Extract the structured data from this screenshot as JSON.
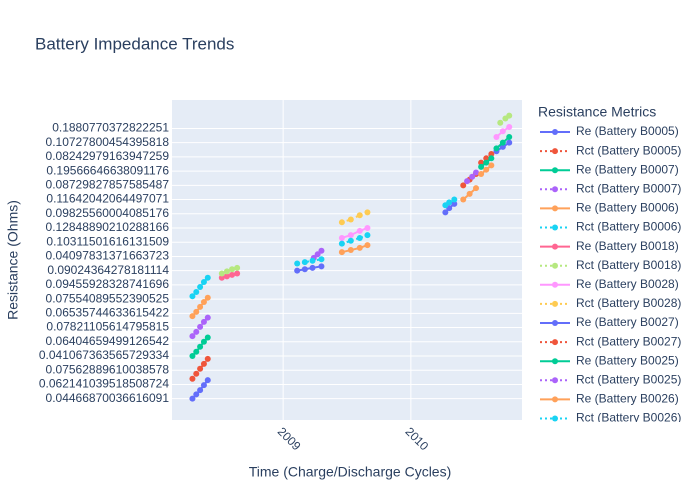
{
  "chart_data": {
    "type": "scatter",
    "title": "Battery Impedance Trends",
    "x_label": "Time (Charge/Discharge Cycles)",
    "y_label": "Resistance (Ohms)",
    "legend_title": "Resistance Metrics",
    "legend_position": "right",
    "grid": true,
    "xlim": [
      2008.13,
      2010.87
    ],
    "xticks": [
      2009,
      2010
    ],
    "ylim": [
      -1.5,
      21
    ],
    "yticks": [
      {
        "value": 0,
        "label": "0.04466870036616091"
      },
      {
        "value": 1,
        "label": "0.062141039518508724"
      },
      {
        "value": 2,
        "label": "0.07562889610038578"
      },
      {
        "value": 3,
        "label": "0.041067363565729334"
      },
      {
        "value": 4,
        "label": "0.06404659499126542"
      },
      {
        "value": 5,
        "label": "0.07821105614795815"
      },
      {
        "value": 6,
        "label": "0.06535744633615422"
      },
      {
        "value": 7,
        "label": "0.07554089552390525"
      },
      {
        "value": 8,
        "label": "0.09455928328741696"
      },
      {
        "value": 9,
        "label": "0.09024364278181114"
      },
      {
        "value": 10,
        "label": "0.04097831371663723"
      },
      {
        "value": 11,
        "label": "0.10311501616131509"
      },
      {
        "value": 12,
        "label": "0.12848890210288166"
      },
      {
        "value": 13,
        "label": "0.09825560004085176"
      },
      {
        "value": 14,
        "label": "0.11642042064497071"
      },
      {
        "value": 15,
        "label": "0.08729827857585487"
      },
      {
        "value": 16,
        "label": "0.19566646638091176"
      },
      {
        "value": 17,
        "label": "0.08242979163947259"
      },
      {
        "value": 18,
        "label": "0.10727800454395818"
      },
      {
        "value": 19,
        "label": "0.1880770372822251"
      }
    ],
    "series": [
      {
        "name": "Re (Battery B0005)",
        "color": "#636efa",
        "dash": "solid",
        "x": [
          2008.29,
          2008.32,
          2008.35,
          2008.38,
          2008.41
        ],
        "values": [
          0,
          0.3,
          0.6,
          0.95,
          1.3
        ]
      },
      {
        "name": "Rct (Battery B0005)",
        "color": "#ef553b",
        "dash": "dot",
        "x": [
          2008.29,
          2008.32,
          2008.35,
          2008.38,
          2008.41
        ],
        "values": [
          1.4,
          1.75,
          2.1,
          2.45,
          2.8
        ]
      },
      {
        "name": "Re (Battery B0007)",
        "color": "#00cc96",
        "dash": "solid",
        "x": [
          2008.29,
          2008.32,
          2008.35,
          2008.38,
          2008.41
        ],
        "values": [
          3.0,
          3.3,
          3.65,
          4.0,
          4.3
        ]
      },
      {
        "name": "Rct (Battery B0007)",
        "color": "#ab63fa",
        "dash": "dot",
        "x": [
          2008.29,
          2008.32,
          2008.35,
          2008.38,
          2008.41
        ],
        "values": [
          4.4,
          4.7,
          5.05,
          5.4,
          5.7
        ]
      },
      {
        "name": "Re (Battery B0006)",
        "color": "#ffa15a",
        "dash": "solid",
        "x": [
          2008.29,
          2008.32,
          2008.35,
          2008.38,
          2008.41
        ],
        "values": [
          5.8,
          6.1,
          6.45,
          6.8,
          7.1
        ]
      },
      {
        "name": "Rct (Battery B0006)",
        "color": "#19d3f3",
        "dash": "dot",
        "x": [
          2008.29,
          2008.32,
          2008.35,
          2008.38,
          2008.41
        ],
        "values": [
          7.2,
          7.5,
          7.85,
          8.2,
          8.5
        ]
      },
      {
        "name": "Re (Battery B0018)",
        "color": "#ff6692",
        "dash": "solid",
        "x": [
          2008.52,
          2008.56,
          2008.6,
          2008.64
        ],
        "values": [
          8.5,
          8.6,
          8.7,
          8.8
        ]
      },
      {
        "name": "Rct (Battery B0018)",
        "color": "#b6e880",
        "dash": "dot",
        "x": [
          2008.52,
          2008.56,
          2008.6,
          2008.64,
          null,
          2010.7,
          2010.74,
          2010.77
        ],
        "values": [
          8.8,
          8.95,
          9.1,
          9.2,
          null,
          19.4,
          19.7,
          19.9
        ]
      },
      {
        "name": "Re (Battery B0028)",
        "color": "#ff97ff",
        "dash": "solid",
        "x": [
          2009.46,
          2009.53,
          2009.6,
          2009.66,
          null,
          2010.67,
          2010.72,
          2010.77
        ],
        "values": [
          11.3,
          11.5,
          11.8,
          12.0,
          null,
          18.4,
          18.8,
          19.1
        ]
      },
      {
        "name": "Rct (Battery B0028)",
        "color": "#fecb52",
        "dash": "dot",
        "x": [
          2009.46,
          2009.53,
          2009.6,
          2009.66
        ],
        "values": [
          12.4,
          12.6,
          12.9,
          13.1
        ]
      },
      {
        "name": "Re (Battery B0027)",
        "color": "#636efa",
        "dash": "solid",
        "x": [
          2009.11,
          2009.17,
          2009.23,
          2009.3,
          null,
          2010.27,
          2010.3,
          2010.34,
          null,
          2010.67,
          2010.72,
          2010.77
        ],
        "values": [
          9.0,
          9.1,
          9.2,
          9.3,
          null,
          13.1,
          13.4,
          13.7,
          null,
          17.4,
          17.7,
          18.0
        ]
      },
      {
        "name": "Rct (Battery B0027)",
        "color": "#ef553b",
        "dash": "dot",
        "x": [
          2010.41,
          2010.46,
          2010.51,
          null,
          2010.55,
          2010.59,
          2010.63
        ],
        "values": [
          15.0,
          15.4,
          15.8,
          null,
          16.6,
          16.9,
          17.2
        ]
      },
      {
        "name": "Re (Battery B0025)",
        "color": "#00cc96",
        "dash": "solid",
        "x": [
          2010.55,
          2010.59,
          2010.63,
          null,
          2010.67,
          2010.72,
          2010.77
        ],
        "values": [
          16.3,
          16.6,
          16.9,
          null,
          17.6,
          18.0,
          18.4
        ]
      },
      {
        "name": "Rct (Battery B0025)",
        "color": "#ab63fa",
        "dash": "dot",
        "x": [
          2009.24,
          2009.27,
          2009.3,
          null,
          2010.44,
          2010.48,
          2010.51
        ],
        "values": [
          9.9,
          10.15,
          10.4,
          null,
          15.3,
          15.6,
          15.9
        ]
      },
      {
        "name": "Re (Battery B0026)",
        "color": "#ffa15a",
        "dash": "solid",
        "x": [
          2009.46,
          2009.53,
          2009.6,
          2009.66,
          null,
          2010.41,
          2010.46,
          2010.51,
          null,
          2010.55,
          2010.59,
          2010.63
        ],
        "values": [
          10.3,
          10.45,
          10.6,
          10.8,
          null,
          14.0,
          14.4,
          14.8,
          null,
          15.8,
          16.1,
          16.4
        ]
      },
      {
        "name": "Rct (Battery B0026)",
        "color": "#19d3f3",
        "dash": "dot",
        "x": [
          2009.11,
          2009.17,
          2009.23,
          2009.3,
          null,
          2009.46,
          2009.53,
          2009.6,
          2009.66,
          null,
          2010.27,
          2010.3,
          2010.34
        ],
        "values": [
          9.5,
          9.6,
          9.7,
          9.8,
          null,
          10.9,
          11.1,
          11.3,
          11.5,
          null,
          13.6,
          13.8,
          14.0
        ]
      }
    ]
  }
}
